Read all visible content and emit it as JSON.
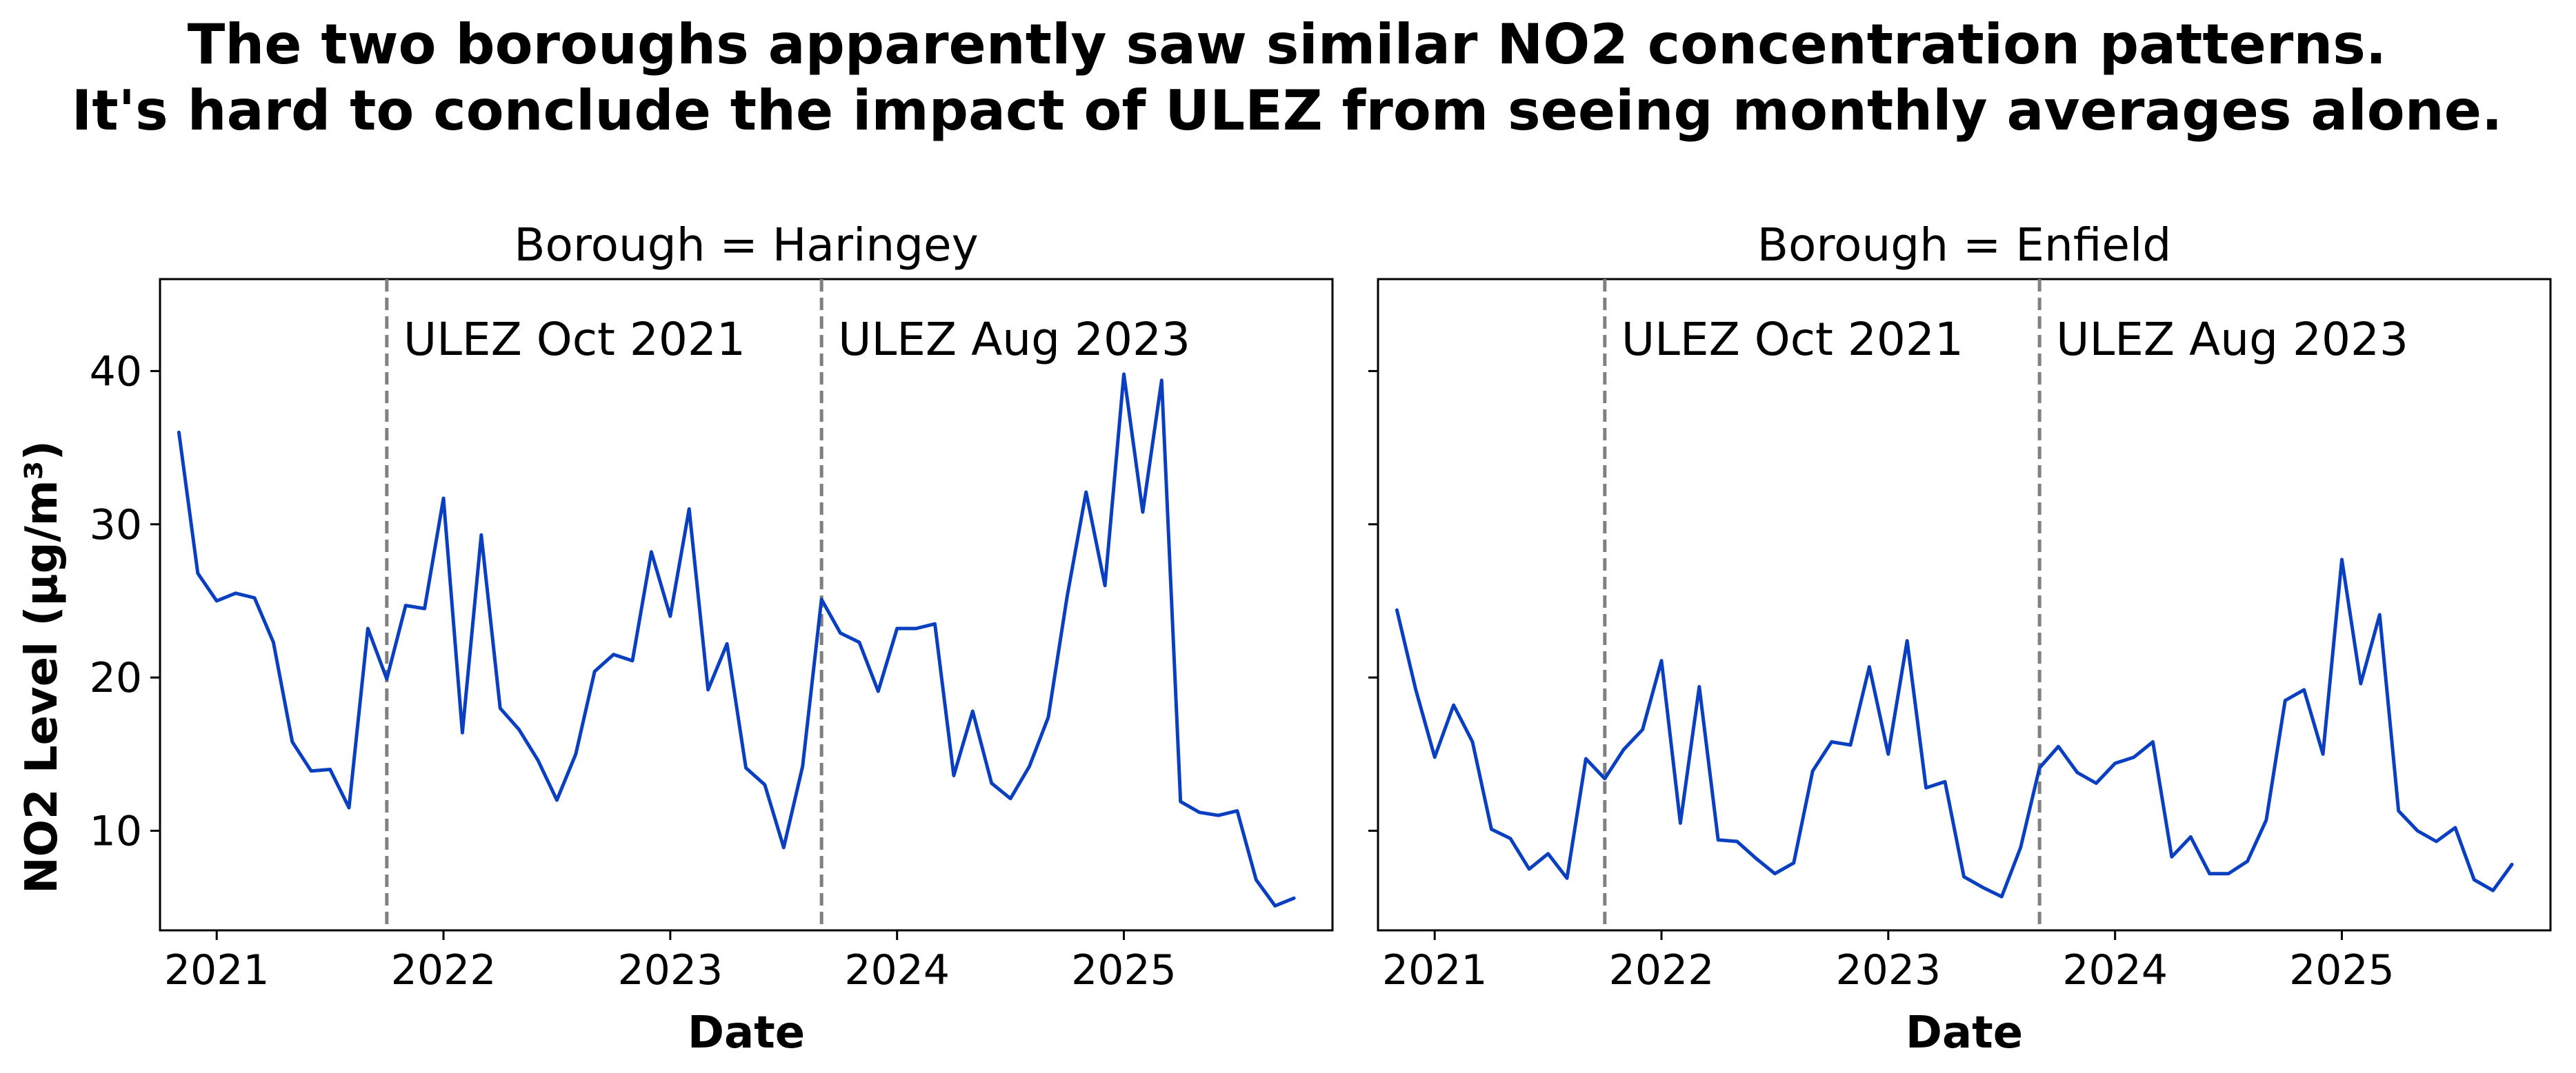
{
  "title_lines": [
    "The two boroughs apparently saw similar NO2 concentration patterns.",
    "It's hard to conclude the impact of ULEZ from seeing monthly averages alone."
  ],
  "chart_data": [
    {
      "type": "line",
      "title": "Borough = Haringey",
      "xlabel": "Date",
      "ylabel": "NO2 Level (µg/m³)",
      "x_start": "2020-11",
      "x_step": "1 month",
      "xlim": [
        2020.75,
        2025.92
      ],
      "ylim": [
        3.5,
        46
      ],
      "xticks": [
        {
          "value": 2021,
          "label": "2021"
        },
        {
          "value": 2022,
          "label": "2022"
        },
        {
          "value": 2023,
          "label": "2023"
        },
        {
          "value": 2024,
          "label": "2024"
        },
        {
          "value": 2025,
          "label": "2025"
        }
      ],
      "yticks": [
        {
          "value": 10,
          "label": "10"
        },
        {
          "value": 20,
          "label": "20"
        },
        {
          "value": 30,
          "label": "30"
        },
        {
          "value": 40,
          "label": "40"
        }
      ],
      "series": [
        {
          "name": "NO2",
          "color": "#0a3fbf",
          "values": [
            36.0,
            26.8,
            25.0,
            25.5,
            25.2,
            22.3,
            15.8,
            13.9,
            14.0,
            11.5,
            23.2,
            19.9,
            24.7,
            24.5,
            31.7,
            16.4,
            29.3,
            18.0,
            16.6,
            14.6,
            12.0,
            15.0,
            20.4,
            21.5,
            21.1,
            28.2,
            24.0,
            31.0,
            19.2,
            22.2,
            14.1,
            13.0,
            8.9,
            14.2,
            25.1,
            22.9,
            22.3,
            19.1,
            23.2,
            23.2,
            23.5,
            13.6,
            17.8,
            13.1,
            12.1,
            14.2,
            17.4,
            25.3,
            32.1,
            26.0,
            39.8,
            30.8,
            39.4,
            11.9,
            11.2,
            11.0,
            11.3,
            6.8,
            5.1,
            5.6
          ]
        }
      ],
      "annotations": [
        {
          "x": 2021.75,
          "label": "ULEZ Oct 2021",
          "color": "#808080",
          "style": "dashed"
        },
        {
          "x": 2023.667,
          "label": "ULEZ Aug 2023",
          "color": "#808080",
          "style": "dashed"
        }
      ]
    },
    {
      "type": "line",
      "title": "Borough = Enfield",
      "xlabel": "Date",
      "ylabel": "",
      "x_start": "2020-11",
      "x_step": "1 month",
      "xlim": [
        2020.75,
        2025.92
      ],
      "ylim": [
        3.5,
        46
      ],
      "xticks": [
        {
          "value": 2021,
          "label": "2021"
        },
        {
          "value": 2022,
          "label": "2022"
        },
        {
          "value": 2023,
          "label": "2023"
        },
        {
          "value": 2024,
          "label": "2024"
        },
        {
          "value": 2025,
          "label": "2025"
        }
      ],
      "yticks": [
        {
          "value": 10,
          "label": ""
        },
        {
          "value": 20,
          "label": ""
        },
        {
          "value": 30,
          "label": ""
        },
        {
          "value": 40,
          "label": ""
        }
      ],
      "series": [
        {
          "name": "NO2",
          "color": "#0a3fbf",
          "values": [
            24.4,
            19.2,
            14.8,
            18.2,
            15.8,
            10.1,
            9.5,
            7.5,
            8.5,
            6.9,
            14.7,
            13.4,
            15.3,
            16.6,
            21.1,
            10.5,
            19.4,
            9.4,
            9.3,
            8.2,
            7.2,
            7.9,
            13.9,
            15.8,
            15.6,
            20.7,
            15.0,
            22.4,
            12.8,
            13.2,
            7.0,
            6.3,
            5.7,
            8.9,
            14.1,
            15.5,
            13.8,
            13.1,
            14.4,
            14.8,
            15.8,
            8.3,
            9.6,
            7.2,
            7.2,
            8.0,
            10.7,
            18.5,
            19.2,
            15.0,
            27.7,
            19.6,
            24.1,
            11.3,
            10.0,
            9.3,
            10.2,
            6.8,
            6.1,
            7.8
          ]
        }
      ],
      "annotations": [
        {
          "x": 2021.75,
          "label": "ULEZ Oct 2021",
          "color": "#808080",
          "style": "dashed"
        },
        {
          "x": 2023.667,
          "label": "ULEZ Aug 2023",
          "color": "#808080",
          "style": "dashed"
        }
      ]
    }
  ]
}
